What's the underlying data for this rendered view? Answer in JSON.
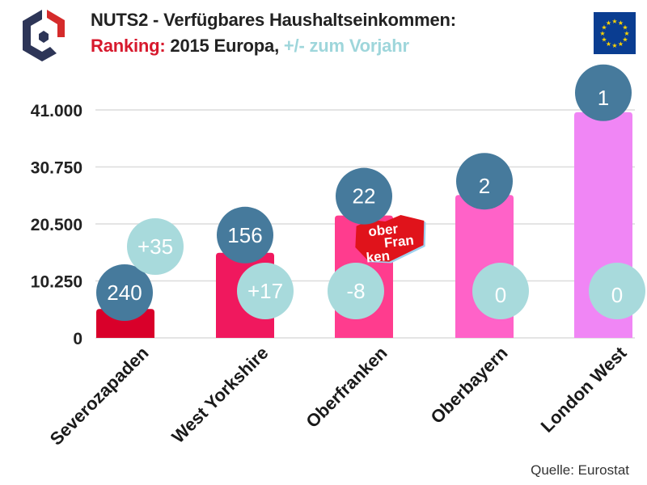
{
  "header": {
    "title_line1": "NUTS2 - Verfügbares Haushaltseinkommen:",
    "title_line2_red": "Ranking:",
    "title_line2_dark": " 2015 Europa, ",
    "title_line2_cyan": "+/- zum Vorjahr"
  },
  "logo": {
    "icon": "hexagon-logo-icon"
  },
  "flag": {
    "icon": "eu-flag-icon"
  },
  "source": "Quelle: Eurostat",
  "colors": {
    "rank_bubble": "#467a9c",
    "change_bubble": "#a8dadc",
    "title_red": "#d7192d",
    "title_cyan": "#9ed6db"
  },
  "chart_data": {
    "type": "bar",
    "title": "NUTS2 - Verfügbares Haushaltseinkommen: Ranking: 2015 Europa, +/- zum Vorjahr",
    "xlabel": "",
    "ylabel": "",
    "categories": [
      "Severozapaden",
      "West Yorkshire",
      "Oberfranken",
      "Oberbayern",
      "London West"
    ],
    "values": [
      5200,
      15300,
      22000,
      25700,
      40600
    ],
    "bar_colors": [
      "#d9002a",
      "#f0185e",
      "#ff3c8e",
      "#ff62c8",
      "#f086f5"
    ],
    "ranks": [
      "240",
      "156",
      "22",
      "2",
      "1"
    ],
    "changes": [
      "+35",
      "+17",
      "-8",
      "0",
      "0"
    ],
    "yticks": [
      0,
      10250,
      20500,
      30750,
      41000
    ],
    "ytick_labels": [
      "0",
      "10.250",
      "20.500",
      "30.750",
      "41.000"
    ],
    "ylim": [
      0,
      41000
    ],
    "grid": true,
    "legend": "none",
    "annotations": [
      "oberfranken logo badge on Oberfranken bar"
    ]
  }
}
